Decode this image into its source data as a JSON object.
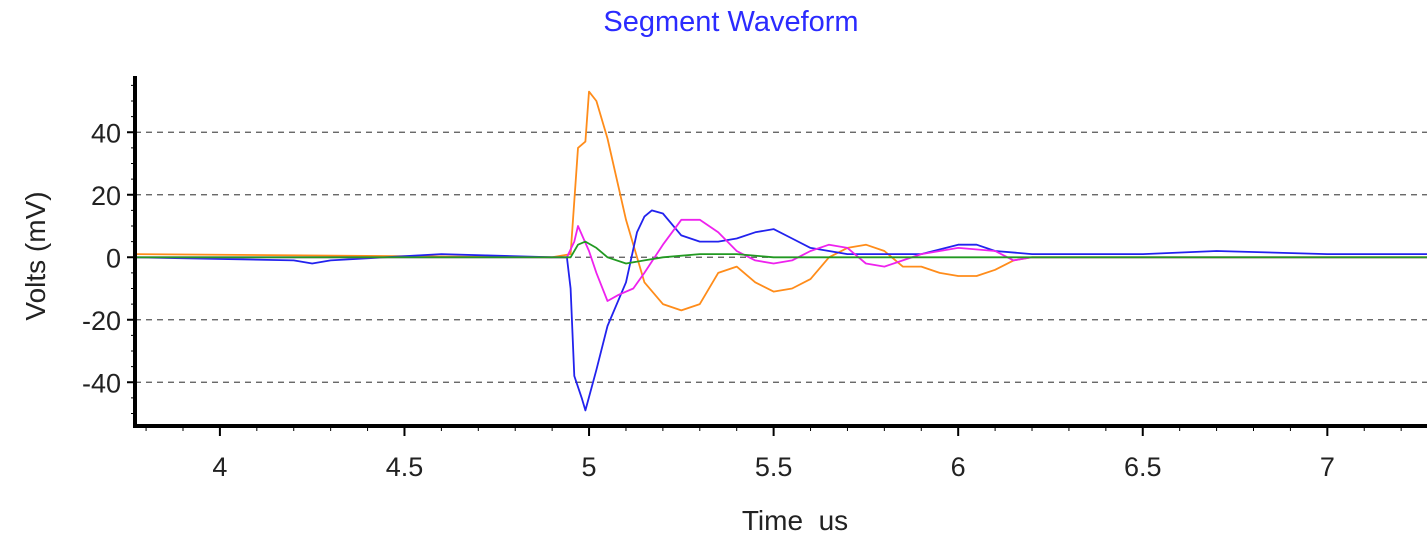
{
  "chart_data": {
    "type": "line",
    "title": "Segment Waveform",
    "xlabel": "Time  us",
    "ylabel": "Volts (mV)",
    "xlim": [
      3.77,
      7.27
    ],
    "ylim": [
      -54,
      58
    ],
    "xticks": [
      4,
      4.5,
      5,
      5.5,
      6,
      6.5,
      7
    ],
    "xtick_labels": [
      "4",
      "4.5",
      "5",
      "5.5",
      "6",
      "6.5",
      "7"
    ],
    "yticks": [
      40,
      20,
      0,
      -20,
      -40
    ],
    "ytick_labels": [
      "40",
      "20",
      "0",
      "-20",
      "-40"
    ],
    "grid": "horizontal-dashed",
    "series": [
      {
        "color": "#ff8c1a",
        "points": [
          [
            3.77,
            1
          ],
          [
            4.9,
            0
          ],
          [
            4.95,
            1
          ],
          [
            4.97,
            35
          ],
          [
            4.99,
            37
          ],
          [
            5.0,
            53
          ],
          [
            5.02,
            50
          ],
          [
            5.05,
            38
          ],
          [
            5.1,
            12
          ],
          [
            5.15,
            -8
          ],
          [
            5.2,
            -15
          ],
          [
            5.25,
            -17
          ],
          [
            5.3,
            -15
          ],
          [
            5.35,
            -5
          ],
          [
            5.4,
            -3
          ],
          [
            5.45,
            -8
          ],
          [
            5.5,
            -11
          ],
          [
            5.55,
            -10
          ],
          [
            5.6,
            -7
          ],
          [
            5.65,
            0
          ],
          [
            5.7,
            3
          ],
          [
            5.75,
            4
          ],
          [
            5.8,
            2
          ],
          [
            5.85,
            -3
          ],
          [
            5.9,
            -3
          ],
          [
            5.95,
            -5
          ],
          [
            6.0,
            -6
          ],
          [
            6.05,
            -6
          ],
          [
            6.1,
            -4
          ],
          [
            6.15,
            -1
          ],
          [
            6.2,
            0
          ],
          [
            6.5,
            0
          ],
          [
            7.0,
            0
          ],
          [
            7.27,
            0
          ]
        ]
      },
      {
        "color": "#2222ee",
        "points": [
          [
            3.77,
            0
          ],
          [
            4.2,
            -1
          ],
          [
            4.25,
            -2
          ],
          [
            4.3,
            -1
          ],
          [
            4.6,
            1
          ],
          [
            4.9,
            0
          ],
          [
            4.94,
            0
          ],
          [
            4.95,
            -10
          ],
          [
            4.96,
            -38
          ],
          [
            4.98,
            -45
          ],
          [
            4.99,
            -49
          ],
          [
            5.02,
            -36
          ],
          [
            5.05,
            -22
          ],
          [
            5.1,
            -8
          ],
          [
            5.13,
            8
          ],
          [
            5.15,
            13
          ],
          [
            5.17,
            15
          ],
          [
            5.2,
            14
          ],
          [
            5.25,
            7
          ],
          [
            5.3,
            5
          ],
          [
            5.35,
            5
          ],
          [
            5.4,
            6
          ],
          [
            5.45,
            8
          ],
          [
            5.5,
            9
          ],
          [
            5.55,
            6
          ],
          [
            5.6,
            3
          ],
          [
            5.65,
            2
          ],
          [
            5.7,
            1
          ],
          [
            5.8,
            1
          ],
          [
            5.9,
            1
          ],
          [
            6.0,
            4
          ],
          [
            6.05,
            4
          ],
          [
            6.1,
            2
          ],
          [
            6.2,
            1
          ],
          [
            6.5,
            1
          ],
          [
            6.7,
            2
          ],
          [
            7.0,
            1
          ],
          [
            7.27,
            1
          ]
        ]
      },
      {
        "color": "#ee22ee",
        "points": [
          [
            3.77,
            0
          ],
          [
            4.9,
            0
          ],
          [
            4.94,
            0
          ],
          [
            4.96,
            5
          ],
          [
            4.97,
            10
          ],
          [
            5.0,
            2
          ],
          [
            5.02,
            -5
          ],
          [
            5.05,
            -14
          ],
          [
            5.08,
            -12
          ],
          [
            5.12,
            -10
          ],
          [
            5.15,
            -5
          ],
          [
            5.2,
            4
          ],
          [
            5.25,
            12
          ],
          [
            5.3,
            12
          ],
          [
            5.35,
            8
          ],
          [
            5.4,
            2
          ],
          [
            5.45,
            -1
          ],
          [
            5.5,
            -2
          ],
          [
            5.55,
            -1
          ],
          [
            5.6,
            2
          ],
          [
            5.65,
            4
          ],
          [
            5.7,
            3
          ],
          [
            5.75,
            -2
          ],
          [
            5.8,
            -3
          ],
          [
            5.85,
            -1
          ],
          [
            5.9,
            1
          ],
          [
            6.0,
            3
          ],
          [
            6.1,
            2
          ],
          [
            6.15,
            -1
          ],
          [
            6.2,
            0
          ],
          [
            6.5,
            0
          ],
          [
            7.27,
            0
          ]
        ]
      },
      {
        "color": "#229922",
        "points": [
          [
            3.77,
            0
          ],
          [
            4.9,
            0
          ],
          [
            4.95,
            0
          ],
          [
            4.97,
            4
          ],
          [
            4.99,
            5
          ],
          [
            5.02,
            3
          ],
          [
            5.05,
            0
          ],
          [
            5.1,
            -2
          ],
          [
            5.15,
            -1
          ],
          [
            5.2,
            0
          ],
          [
            5.3,
            1
          ],
          [
            5.4,
            1
          ],
          [
            5.5,
            0
          ],
          [
            5.6,
            0
          ],
          [
            5.8,
            0
          ],
          [
            6.0,
            0
          ],
          [
            6.5,
            0
          ],
          [
            7.27,
            0
          ]
        ]
      }
    ]
  }
}
